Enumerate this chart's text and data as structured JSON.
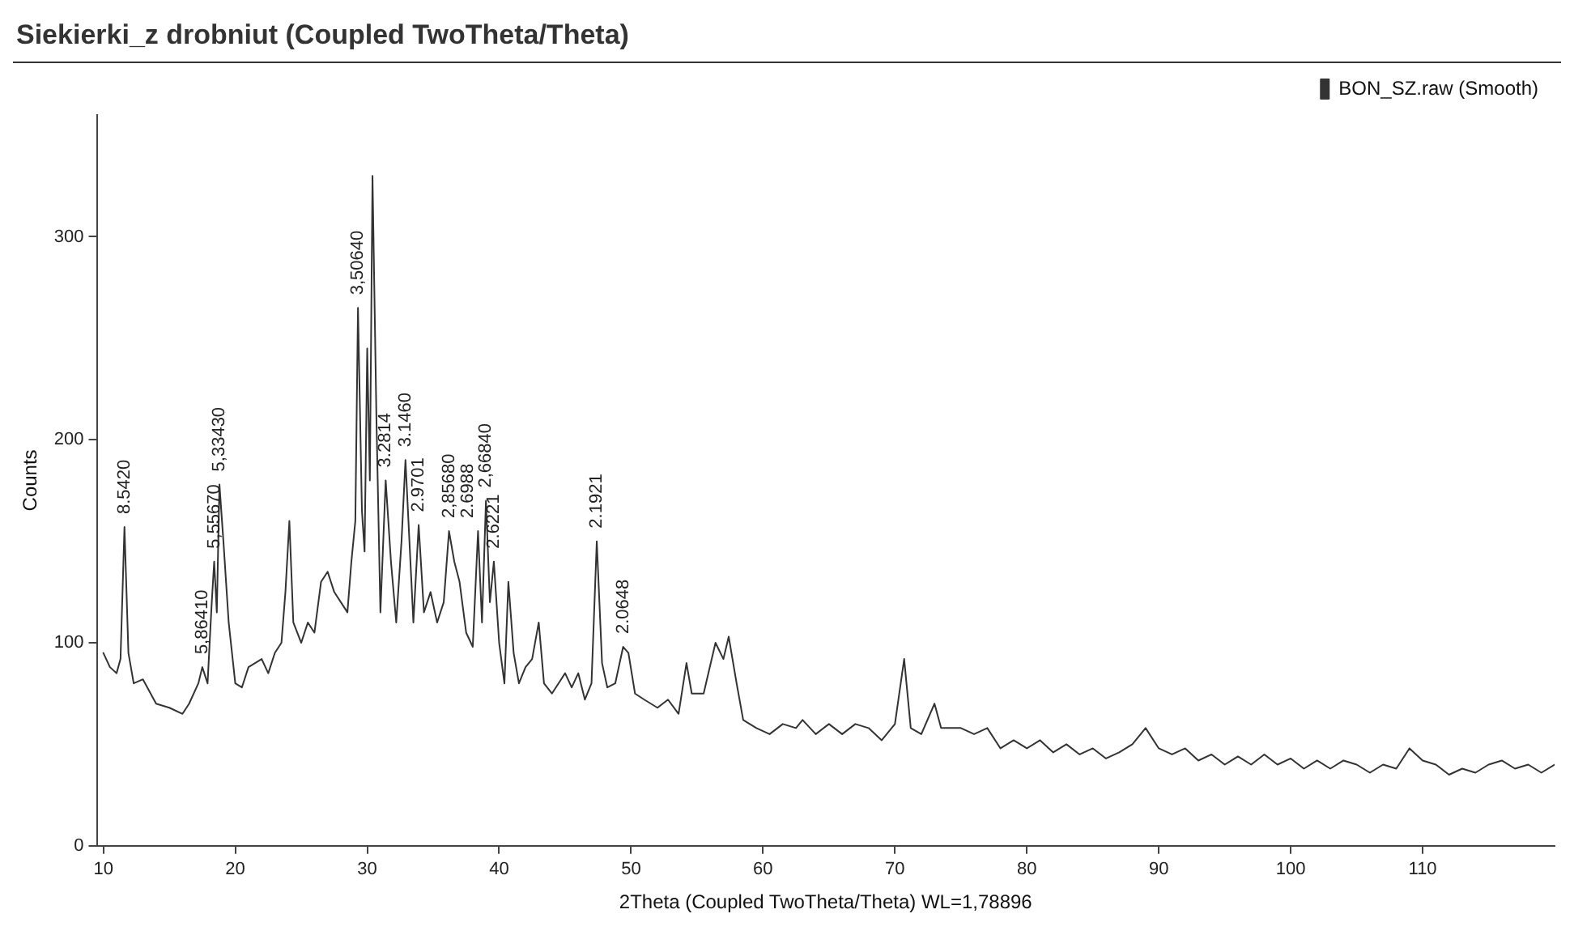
{
  "chart_data": {
    "type": "line",
    "title": "Siekierki_z drobniut (Coupled TwoTheta/Theta)",
    "xlabel": "2Theta (Coupled TwoTheta/Theta) WL=1,78896",
    "ylabel": "Counts",
    "xlim": [
      9.5,
      120
    ],
    "xticks": [
      10,
      20,
      30,
      40,
      50,
      60,
      70,
      80,
      90,
      100,
      110
    ],
    "ylim": [
      0,
      360
    ],
    "yticks": [
      0,
      100,
      200,
      300
    ],
    "grid": false,
    "legend": "top right",
    "marker": "none",
    "line_style": "solid",
    "series": [
      {
        "name": "BON_SZ.raw (Smooth)",
        "color": "#333333",
        "x": [
          10,
          10.5,
          11,
          11.3,
          11.6,
          11.9,
          12.3,
          13,
          14,
          15,
          16,
          16.5,
          17.2,
          17.5,
          17.9,
          18.2,
          18.4,
          18.6,
          18.8,
          19.1,
          19.5,
          20,
          20.5,
          21,
          22,
          22.5,
          23,
          23.5,
          23.8,
          24.1,
          24.4,
          25,
          25.5,
          26,
          26.5,
          27,
          27.5,
          28,
          28.5,
          28.8,
          29.1,
          29.3,
          29.6,
          29.8,
          30,
          30.2,
          30.4,
          30.7,
          31,
          31.4,
          31.8,
          32.2,
          32.6,
          32.9,
          33.2,
          33.5,
          33.9,
          34.3,
          34.8,
          35.3,
          35.8,
          36.2,
          36.6,
          37,
          37.5,
          38,
          38.4,
          38.7,
          39,
          39.3,
          39.6,
          40,
          40.4,
          40.7,
          41.1,
          41.5,
          42,
          42.5,
          43,
          43.4,
          44,
          44.5,
          45,
          45.5,
          46,
          46.5,
          47,
          47.4,
          47.8,
          48.2,
          48.8,
          49.4,
          49.8,
          50.3,
          51,
          52,
          52.8,
          53.6,
          54.2,
          54.6,
          55.5,
          56.4,
          57,
          57.4,
          58,
          58.5,
          59.5,
          60.5,
          61.5,
          62.5,
          63,
          64,
          65,
          66,
          67,
          68,
          69,
          70,
          70.7,
          71.2,
          72,
          73,
          73.5,
          75,
          76,
          77,
          78,
          79,
          80,
          81,
          82,
          83,
          84,
          85,
          86,
          87,
          88,
          89,
          90,
          91,
          92,
          93,
          94,
          95,
          96,
          97,
          98,
          99,
          100,
          101,
          102,
          103,
          104,
          105,
          106,
          107,
          108,
          109,
          110,
          111,
          112,
          113,
          114,
          115,
          116,
          117,
          118,
          119,
          120
        ],
        "values": [
          95,
          88,
          85,
          92,
          157,
          95,
          80,
          82,
          70,
          68,
          65,
          70,
          80,
          88,
          80,
          118,
          140,
          115,
          178,
          150,
          110,
          80,
          78,
          88,
          92,
          85,
          95,
          100,
          125,
          160,
          110,
          100,
          110,
          105,
          130,
          135,
          125,
          120,
          115,
          140,
          160,
          265,
          165,
          145,
          245,
          180,
          330,
          210,
          115,
          180,
          140,
          110,
          150,
          190,
          150,
          110,
          158,
          115,
          125,
          110,
          120,
          155,
          140,
          130,
          105,
          98,
          155,
          110,
          170,
          120,
          140,
          100,
          80,
          130,
          95,
          80,
          88,
          92,
          110,
          80,
          75,
          80,
          85,
          78,
          85,
          72,
          80,
          150,
          90,
          78,
          80,
          98,
          95,
          75,
          72,
          68,
          72,
          65,
          90,
          75,
          75,
          100,
          92,
          103,
          80,
          62,
          58,
          55,
          60,
          58,
          62,
          55,
          60,
          55,
          60,
          58,
          52,
          60,
          92,
          58,
          55,
          70,
          58,
          58,
          55,
          58,
          48,
          52,
          48,
          52,
          46,
          50,
          45,
          48,
          43,
          46,
          50,
          58,
          48,
          45,
          48,
          42,
          45,
          40,
          44,
          40,
          45,
          40,
          43,
          38,
          42,
          38,
          42,
          40,
          36,
          40,
          38,
          48,
          42,
          40,
          35,
          38,
          36,
          40,
          42,
          38,
          40,
          36,
          40
        ]
      }
    ],
    "annotations": [
      {
        "text": "8.5420",
        "x": 11.6,
        "y": 157
      },
      {
        "text": "5,86410",
        "x": 17.5,
        "y": 88
      },
      {
        "text": "5,55670",
        "x": 18.4,
        "y": 140
      },
      {
        "text": "5,33430",
        "x": 18.8,
        "y": 178
      },
      {
        "text": "3,50640",
        "x": 29.3,
        "y": 265
      },
      {
        "text": "3.2814",
        "x": 31.4,
        "y": 180
      },
      {
        "text": "3.1460",
        "x": 32.9,
        "y": 190
      },
      {
        "text": "2.9701",
        "x": 33.9,
        "y": 158
      },
      {
        "text": "2,85680",
        "x": 36.2,
        "y": 155
      },
      {
        "text": "2.6988",
        "x": 38.4,
        "y": 155
      },
      {
        "text": "2,66840",
        "x": 39,
        "y": 170
      },
      {
        "text": "2.6221",
        "x": 39.6,
        "y": 140
      },
      {
        "text": "2.1921",
        "x": 47.4,
        "y": 150
      },
      {
        "text": "2.0648",
        "x": 49.4,
        "y": 98
      }
    ]
  }
}
